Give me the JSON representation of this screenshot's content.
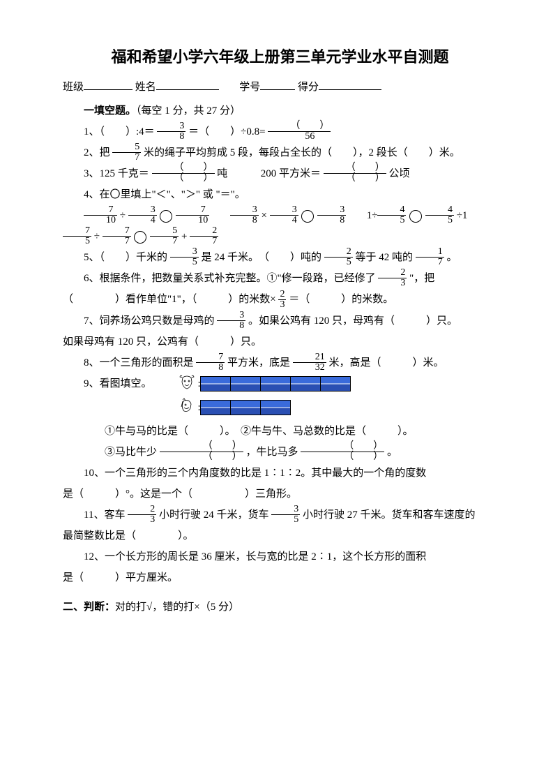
{
  "title": "福和希望小学六年级上册第三单元学业水平自测题",
  "info": {
    "class_label": "班级",
    "name_label": "姓名",
    "id_label": "学号",
    "score_label": "得分"
  },
  "s1": {
    "head": "一填空题。",
    "head_note": "（每空 1 分，共 27 分）",
    "q1_a": "1、（　　）:4＝",
    "q1_frac1_n": "3",
    "q1_frac1_d": "8",
    "q1_b": " ＝（　　）÷0.8= ",
    "q1_frac2_n": "（　　）",
    "q1_frac2_d": "56",
    "q2_a": "2、把",
    "q2_frac_n": "5",
    "q2_frac_d": "7",
    "q2_b": " 米的绳子平均剪成 5 段，每段占全长的（　　），2 段长（　　）米。",
    "q3_a": "3、125 千克＝",
    "q3_f1_n": "（　　）",
    "q3_f1_d": "（　　）",
    "q3_b": "吨",
    "q3_c": "200 平方米＝",
    "q3_f2_n": "（　　）",
    "q3_f2_d": "（　　）",
    "q3_d": " 公顷",
    "q4_a": "4、在〇里填上\"＜\"、\"＞\" 或 \"＝\"。",
    "q4b_1a_n": "7",
    "q4b_1a_d": "10",
    "q4b_1b_n": "3",
    "q4b_1b_d": "4",
    "q4b_1c_n": "7",
    "q4b_1c_d": "10",
    "q4b_2a_n": "3",
    "q4b_2a_d": "8",
    "q4b_2b_n": "3",
    "q4b_2b_d": "4",
    "q4b_2c_n": "3",
    "q4b_2c_d": "8",
    "q4b_3a_n": "4",
    "q4b_3a_d": "5",
    "q4b_3b_n": "4",
    "q4b_3b_d": "5",
    "q4b_4a_n": "7",
    "q4b_4a_d": "5",
    "q4b_4b_n": "7",
    "q4b_4b_d": "7",
    "q4b_4c_n": "5",
    "q4b_4c_d": "7",
    "q4b_4d_n": "2",
    "q4b_4d_d": "7",
    "q5_a": "5、（　　）千米的",
    "q5_f1_n": "3",
    "q5_f1_d": "5",
    "q5_b": " 是 24 千米。　（　　）吨的",
    "q5_f2_n": "2",
    "q5_f2_d": "5",
    "q5_c": " 等于 42 吨的",
    "q5_f3_n": "1",
    "q5_f3_d": "7",
    "q5_d": " 。",
    "q6_a": "6、根据条件，把数量关系式补充完整。①\"修一段路，已经修了",
    "q6_f1_n": "2",
    "q6_f1_d": "3",
    "q6_b": " \"，把",
    "q6_c": "（　　　　）看作单位\"1\"，（　　　）的米数×",
    "q6_f2_n": "2",
    "q6_f2_d": "3",
    "q6_d": " ＝（　　　）的米数。",
    "q7_a": "7、饲养场公鸡只数是母鸡的",
    "q7_f1_n": "3",
    "q7_f1_d": "8",
    "q7_b": " 。如果公鸡有 120 只，母鸡有（　　　）只。",
    "q7_c": "如果母鸡有 120 只，公鸡有（　　　）只。",
    "q8_a": "8、一个三角形的面积是",
    "q8_f1_n": "7",
    "q8_f1_d": "8",
    "q8_b": " 平方米，底是",
    "q8_f2_n": "21",
    "q8_f2_d": "32",
    "q8_c": " 米，高是（　　　）米。",
    "q9_a": "9、看图填空。",
    "q9_1": "①牛与马的比是（　　　）。　②牛与牛、马总数的比是（　　　）。",
    "q9_2a": "③马比牛少",
    "q9_2f1_n": "（　　）",
    "q9_2f1_d": "（　　）",
    "q9_2b": " ，牛比马多",
    "q9_2f2_n": "（　　）",
    "q9_2f2_d": "（　　）",
    "q9_2c": " 。",
    "q10_a": "10、一个三角形的三个内角度数的比是 1∶1∶2。其中最大的一个角的度数",
    "q10_b": "是（　　　）°。这是一个（　　　　　）三角形。",
    "q11_a": "11、客车",
    "q11_f1_n": "2",
    "q11_f1_d": "3",
    "q11_b": " 小时行驶 24 千米，货车",
    "q11_f2_n": "3",
    "q11_f2_d": "5",
    "q11_c": " 小时行驶 27 千米。货车和客车速度的",
    "q11_d": "最简整数比是（　　　　）。",
    "q12_a": "12、一个长方形的周长是 36 厘米，长与宽的比是 2∶1，这个长方形的面积",
    "q12_b": "是（　　　）平方厘米。"
  },
  "s2": {
    "head": "二、判断：",
    "note": "对的打√，错的打×（5 分）"
  },
  "chart": {
    "cow_cells": 5,
    "horse_cells": 3,
    "cell_color": "#3a6bdb",
    "border_color": "#000000"
  }
}
